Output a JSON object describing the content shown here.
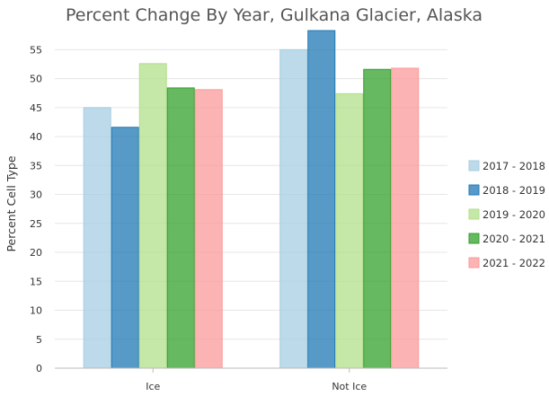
{
  "chart_data": {
    "type": "bar",
    "title": "Percent Change By Year, Gulkana Glacier, Alaska",
    "xlabel": "",
    "ylabel": "Percent Cell Type",
    "categories": [
      "Ice",
      "Not Ice"
    ],
    "ylim": [
      0,
      58
    ],
    "yticks": [
      0,
      5,
      10,
      15,
      20,
      25,
      30,
      35,
      40,
      45,
      50,
      55
    ],
    "grid": true,
    "legend_position": "right",
    "series": [
      {
        "name": "2017 - 2018",
        "values": [
          45.0,
          55.0
        ],
        "color": "#a6cee3"
      },
      {
        "name": "2018 - 2019",
        "values": [
          41.6,
          58.3
        ],
        "color": "#1f78b4"
      },
      {
        "name": "2019 - 2020",
        "values": [
          52.6,
          47.4
        ],
        "color": "#b2df8a"
      },
      {
        "name": "2020 - 2021",
        "values": [
          48.4,
          51.6
        ],
        "color": "#33a02c"
      },
      {
        "name": "2021 - 2022",
        "values": [
          48.1,
          51.8
        ],
        "color": "#fb9a99"
      }
    ]
  }
}
